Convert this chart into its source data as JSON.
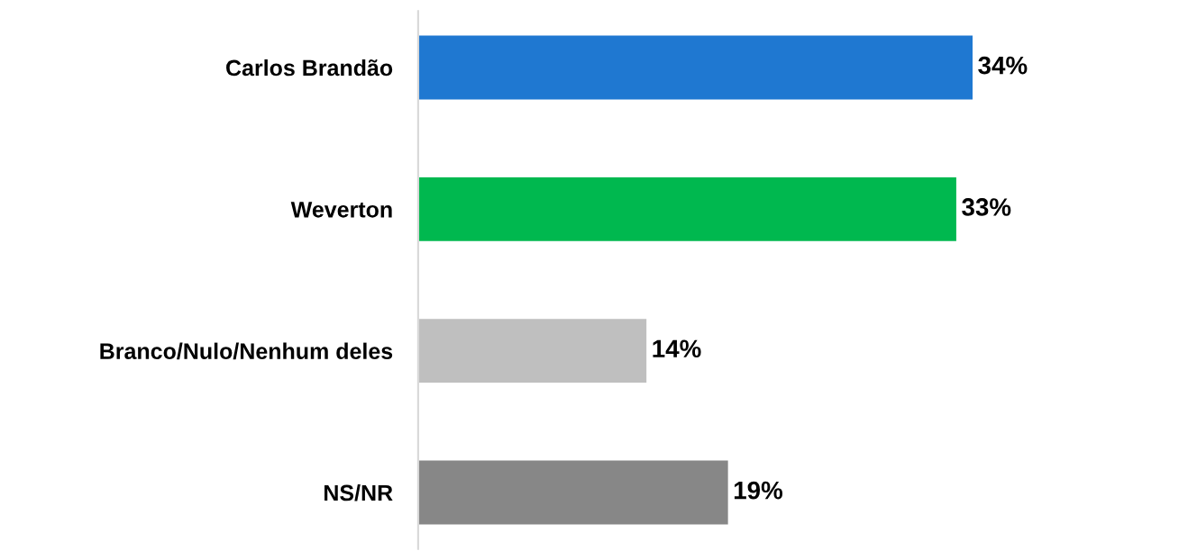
{
  "chart_data": {
    "type": "bar",
    "orientation": "horizontal",
    "categories": [
      "Carlos Brandão",
      "Weverton",
      "Branco/Nulo/Nenhum deles",
      "NS/NR"
    ],
    "values": [
      34,
      33,
      14,
      19
    ],
    "colors": [
      "#1f78d1",
      "#00b84f",
      "#bfbfbf",
      "#878787"
    ],
    "value_labels": [
      "34%",
      "33%",
      "14%",
      "19%"
    ],
    "grid": false,
    "legend": false
  }
}
